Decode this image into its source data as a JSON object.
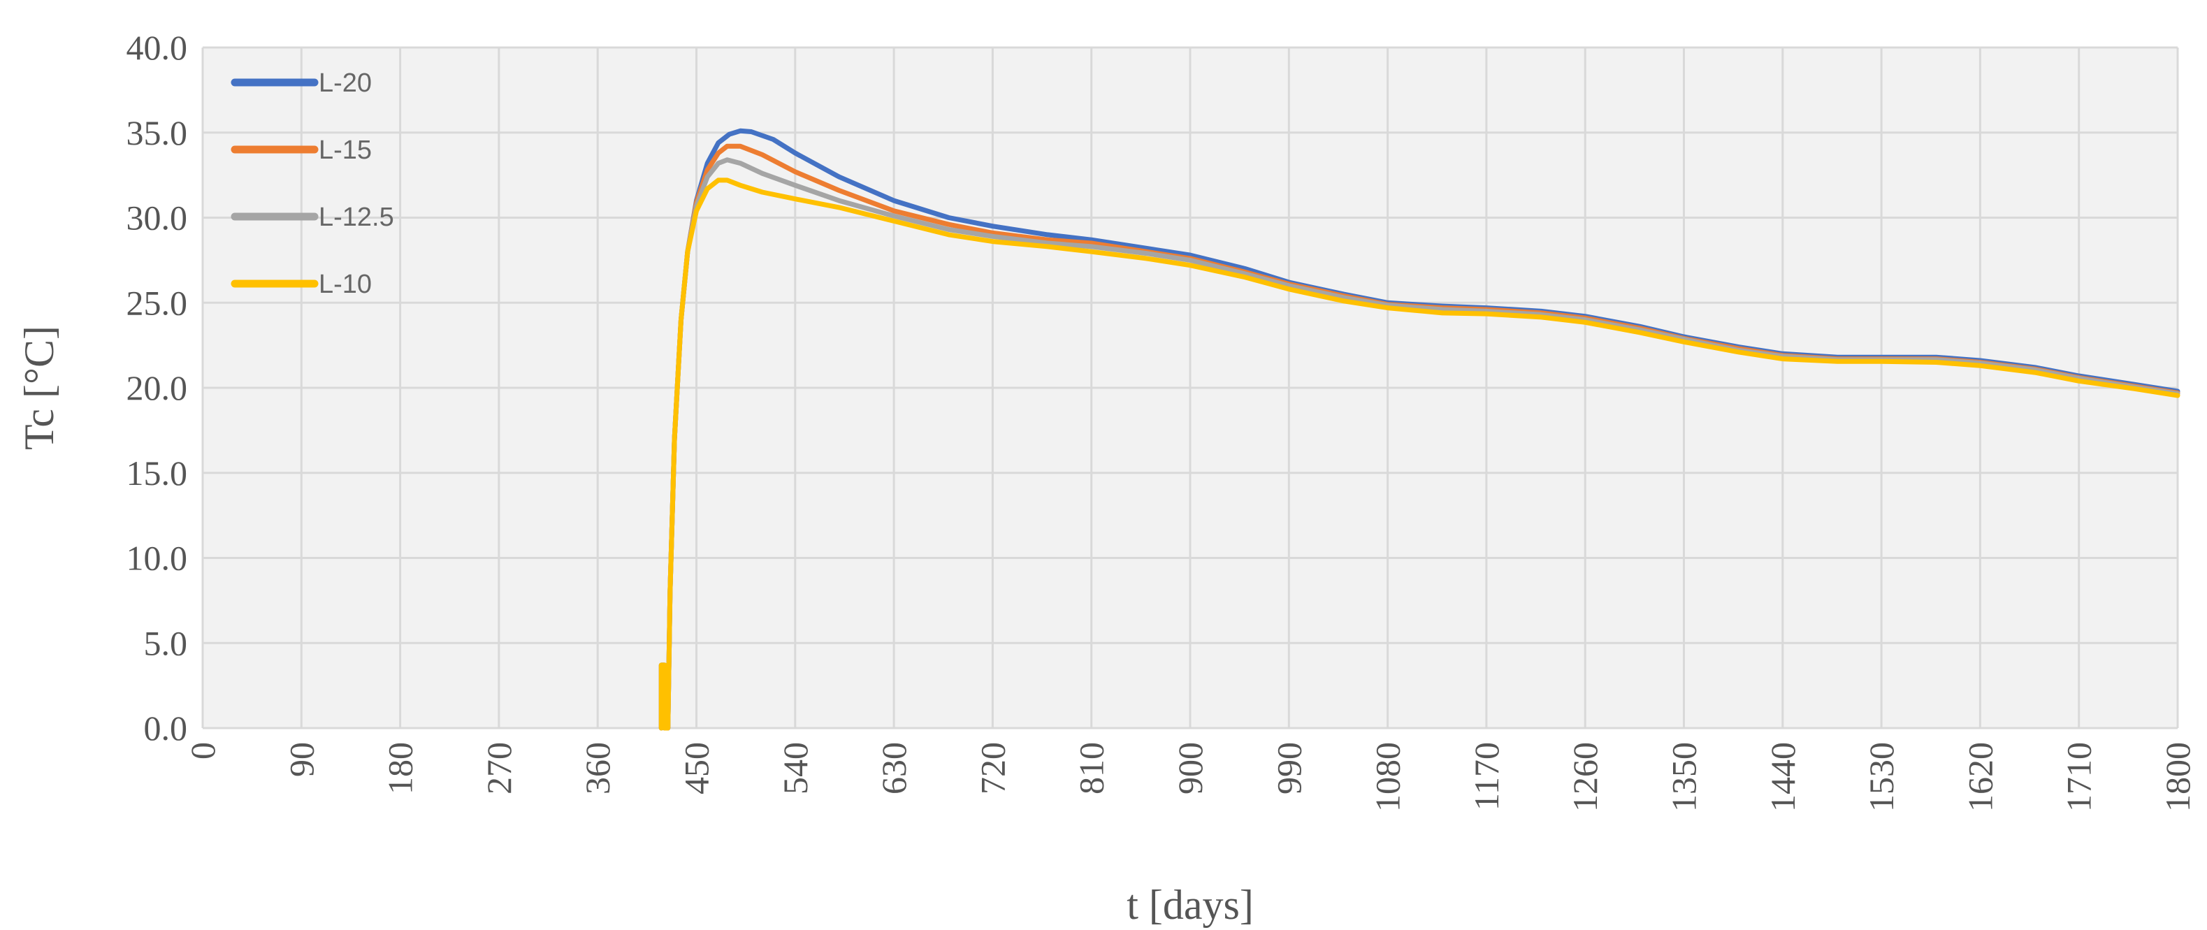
{
  "chart_data": {
    "type": "line",
    "xlabel": "t [days]",
    "ylabel": "Tc [°C]",
    "xlim": [
      0,
      1800
    ],
    "ylim": [
      0,
      40
    ],
    "xticks": [
      "0",
      "90",
      "180",
      "270",
      "360",
      "450",
      "540",
      "630",
      "720",
      "810",
      "900",
      "990",
      "1080",
      "1170",
      "1260",
      "1350",
      "1440",
      "1530",
      "1620",
      "1710",
      "1800"
    ],
    "yticks": [
      "0.0",
      "5.0",
      "10.0",
      "15.0",
      "20.0",
      "25.0",
      "30.0",
      "35.0",
      "40.0"
    ],
    "grid": true,
    "legend_position": "top-left",
    "series": [
      {
        "name": "L-20",
        "color": "#4472C4",
        "points": [
          [
            418,
            0
          ],
          [
            418,
            3.7
          ],
          [
            421,
            3.7
          ],
          [
            421,
            0
          ],
          [
            424,
            0
          ],
          [
            426,
            8
          ],
          [
            430,
            17
          ],
          [
            436,
            24
          ],
          [
            442,
            28
          ],
          [
            450,
            31
          ],
          [
            460,
            33.2
          ],
          [
            470,
            34.4
          ],
          [
            480,
            34.9
          ],
          [
            490,
            35.1
          ],
          [
            500,
            35.05
          ],
          [
            520,
            34.6
          ],
          [
            540,
            33.8
          ],
          [
            580,
            32.4
          ],
          [
            630,
            31.0
          ],
          [
            680,
            30.0
          ],
          [
            720,
            29.5
          ],
          [
            770,
            29.0
          ],
          [
            810,
            28.7
          ],
          [
            860,
            28.2
          ],
          [
            900,
            27.8
          ],
          [
            950,
            27.0
          ],
          [
            990,
            26.2
          ],
          [
            1040,
            25.5
          ],
          [
            1080,
            25.0
          ],
          [
            1130,
            24.8
          ],
          [
            1170,
            24.7
          ],
          [
            1220,
            24.5
          ],
          [
            1260,
            24.2
          ],
          [
            1310,
            23.6
          ],
          [
            1350,
            23.0
          ],
          [
            1400,
            22.4
          ],
          [
            1440,
            22.0
          ],
          [
            1490,
            21.8
          ],
          [
            1530,
            21.8
          ],
          [
            1580,
            21.8
          ],
          [
            1620,
            21.6
          ],
          [
            1670,
            21.2
          ],
          [
            1710,
            20.7
          ],
          [
            1760,
            20.2
          ],
          [
            1800,
            19.8
          ]
        ]
      },
      {
        "name": "L-15",
        "color": "#ED7D31",
        "points": [
          [
            418,
            0
          ],
          [
            418,
            3.7
          ],
          [
            421,
            3.7
          ],
          [
            421,
            0
          ],
          [
            424,
            0
          ],
          [
            426,
            8
          ],
          [
            430,
            17
          ],
          [
            436,
            24
          ],
          [
            442,
            28
          ],
          [
            450,
            30.9
          ],
          [
            460,
            32.8
          ],
          [
            470,
            33.8
          ],
          [
            478,
            34.2
          ],
          [
            490,
            34.2
          ],
          [
            510,
            33.7
          ],
          [
            540,
            32.7
          ],
          [
            580,
            31.6
          ],
          [
            630,
            30.4
          ],
          [
            680,
            29.6
          ],
          [
            720,
            29.1
          ],
          [
            770,
            28.7
          ],
          [
            810,
            28.5
          ],
          [
            860,
            28.0
          ],
          [
            900,
            27.6
          ],
          [
            950,
            26.8
          ],
          [
            990,
            26.1
          ],
          [
            1040,
            25.4
          ],
          [
            1080,
            24.9
          ],
          [
            1130,
            24.7
          ],
          [
            1170,
            24.6
          ],
          [
            1220,
            24.4
          ],
          [
            1260,
            24.1
          ],
          [
            1310,
            23.5
          ],
          [
            1350,
            22.9
          ],
          [
            1400,
            22.3
          ],
          [
            1440,
            21.9
          ],
          [
            1490,
            21.7
          ],
          [
            1530,
            21.7
          ],
          [
            1580,
            21.7
          ],
          [
            1620,
            21.5
          ],
          [
            1670,
            21.1
          ],
          [
            1710,
            20.6
          ],
          [
            1760,
            20.1
          ],
          [
            1800,
            19.7
          ]
        ]
      },
      {
        "name": "L-12.5",
        "color": "#A5A5A5",
        "points": [
          [
            418,
            0
          ],
          [
            418,
            3.7
          ],
          [
            421,
            3.7
          ],
          [
            421,
            0
          ],
          [
            424,
            0
          ],
          [
            426,
            8
          ],
          [
            430,
            17
          ],
          [
            436,
            24
          ],
          [
            442,
            28
          ],
          [
            450,
            30.7
          ],
          [
            460,
            32.4
          ],
          [
            470,
            33.2
          ],
          [
            478,
            33.4
          ],
          [
            490,
            33.2
          ],
          [
            510,
            32.6
          ],
          [
            540,
            31.9
          ],
          [
            580,
            31.0
          ],
          [
            630,
            30.1
          ],
          [
            680,
            29.3
          ],
          [
            720,
            28.9
          ],
          [
            770,
            28.5
          ],
          [
            810,
            28.3
          ],
          [
            860,
            27.9
          ],
          [
            900,
            27.5
          ],
          [
            950,
            26.7
          ],
          [
            990,
            26.0
          ],
          [
            1040,
            25.3
          ],
          [
            1080,
            24.85
          ],
          [
            1130,
            24.6
          ],
          [
            1170,
            24.5
          ],
          [
            1220,
            24.3
          ],
          [
            1260,
            24.0
          ],
          [
            1310,
            23.4
          ],
          [
            1350,
            22.85
          ],
          [
            1400,
            22.2
          ],
          [
            1440,
            21.85
          ],
          [
            1490,
            21.65
          ],
          [
            1530,
            21.65
          ],
          [
            1580,
            21.65
          ],
          [
            1620,
            21.45
          ],
          [
            1670,
            21.05
          ],
          [
            1710,
            20.55
          ],
          [
            1760,
            20.05
          ],
          [
            1800,
            19.65
          ]
        ]
      },
      {
        "name": "L-10",
        "color": "#FFC000",
        "points": [
          [
            418,
            0
          ],
          [
            418,
            3.7
          ],
          [
            421,
            3.7
          ],
          [
            421,
            0
          ],
          [
            424,
            0
          ],
          [
            426,
            8
          ],
          [
            430,
            17
          ],
          [
            436,
            24
          ],
          [
            442,
            28
          ],
          [
            450,
            30.4
          ],
          [
            460,
            31.7
          ],
          [
            470,
            32.2
          ],
          [
            478,
            32.2
          ],
          [
            490,
            31.9
          ],
          [
            510,
            31.5
          ],
          [
            540,
            31.1
          ],
          [
            580,
            30.6
          ],
          [
            630,
            29.8
          ],
          [
            680,
            29.0
          ],
          [
            720,
            28.6
          ],
          [
            770,
            28.3
          ],
          [
            810,
            28.0
          ],
          [
            860,
            27.6
          ],
          [
            900,
            27.2
          ],
          [
            950,
            26.5
          ],
          [
            990,
            25.8
          ],
          [
            1040,
            25.1
          ],
          [
            1080,
            24.7
          ],
          [
            1130,
            24.4
          ],
          [
            1170,
            24.35
          ],
          [
            1220,
            24.15
          ],
          [
            1260,
            23.85
          ],
          [
            1310,
            23.25
          ],
          [
            1350,
            22.7
          ],
          [
            1400,
            22.1
          ],
          [
            1440,
            21.7
          ],
          [
            1490,
            21.55
          ],
          [
            1530,
            21.55
          ],
          [
            1580,
            21.5
          ],
          [
            1620,
            21.3
          ],
          [
            1670,
            20.9
          ],
          [
            1710,
            20.4
          ],
          [
            1760,
            19.95
          ],
          [
            1800,
            19.55
          ]
        ]
      }
    ]
  }
}
